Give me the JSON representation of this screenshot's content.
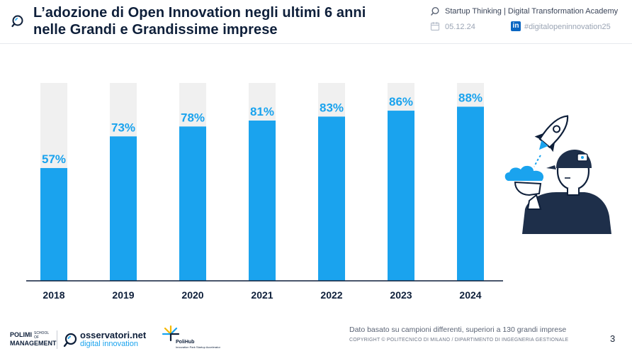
{
  "header": {
    "title_line1": "L’adozione di Open Innovation negli ultimi 6 anni",
    "title_line2": "nelle Grandi e Grandissime imprese",
    "program": "Startup Thinking | Digital Transformation Academy",
    "date": "05.12.24",
    "hashtag": "#digitalopeninnovation25",
    "linkedin_glyph": "in"
  },
  "icons": [
    "search-icon",
    "calendar-icon",
    "linkedin-icon",
    "rocket-person-illustration"
  ],
  "colors": {
    "bar": "#1aa3ee",
    "bar_track": "#f0f0f0",
    "title": "#0e1f3a",
    "accent": "#1aa3ee"
  },
  "chart_data": {
    "type": "bar",
    "categories": [
      "2018",
      "2019",
      "2020",
      "2021",
      "2022",
      "2023",
      "2024"
    ],
    "values": [
      57,
      73,
      78,
      81,
      83,
      86,
      88
    ],
    "value_labels": [
      "57%",
      "73%",
      "78%",
      "81%",
      "83%",
      "86%",
      "88%"
    ],
    "ylim": [
      0,
      100
    ],
    "unit": "%",
    "grid": false,
    "legend": "none",
    "title": "",
    "xlabel": "",
    "ylabel": ""
  },
  "footer": {
    "note": "Dato basato su campioni differenti, superiori a 130 grandi imprese",
    "copyright": "COPYRIGHT © POLITECNICO DI MILANO / DIPARTIMENTO DI INGEGNERIA GESTIONALE",
    "page_number": "3",
    "polimi_line1": "POLIMI",
    "polimi_line2": "MANAGEMENT",
    "polimi_sub": "SCHOOL OF",
    "osservatori_name": "osservatori.net",
    "osservatori_sub": "digital innovation",
    "polihub_name": "PoliHub",
    "polihub_sub": "Innovation Park Startup Accelerator"
  }
}
